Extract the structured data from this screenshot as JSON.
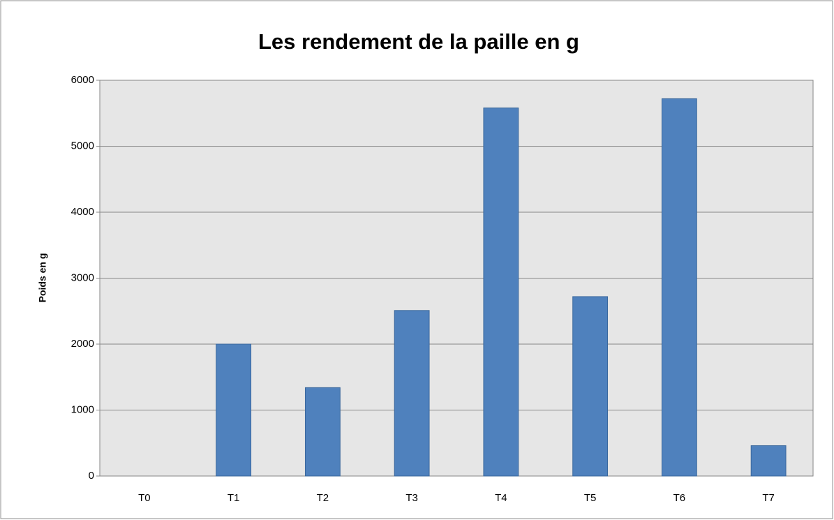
{
  "chart_data": {
    "type": "bar",
    "title": "Les rendement de la paille en g",
    "ylabel": "Poids en g",
    "categories": [
      "T0",
      "T1",
      "T2",
      "T3",
      "T4",
      "T5",
      "T6",
      "T7"
    ],
    "values": [
      0,
      2000,
      1340,
      2510,
      5580,
      2720,
      5720,
      460
    ],
    "color": "#4f81bd",
    "ylim": [
      0,
      6000
    ],
    "yticks": [
      0,
      1000,
      2000,
      3000,
      4000,
      5000,
      6000
    ],
    "grid": true
  }
}
